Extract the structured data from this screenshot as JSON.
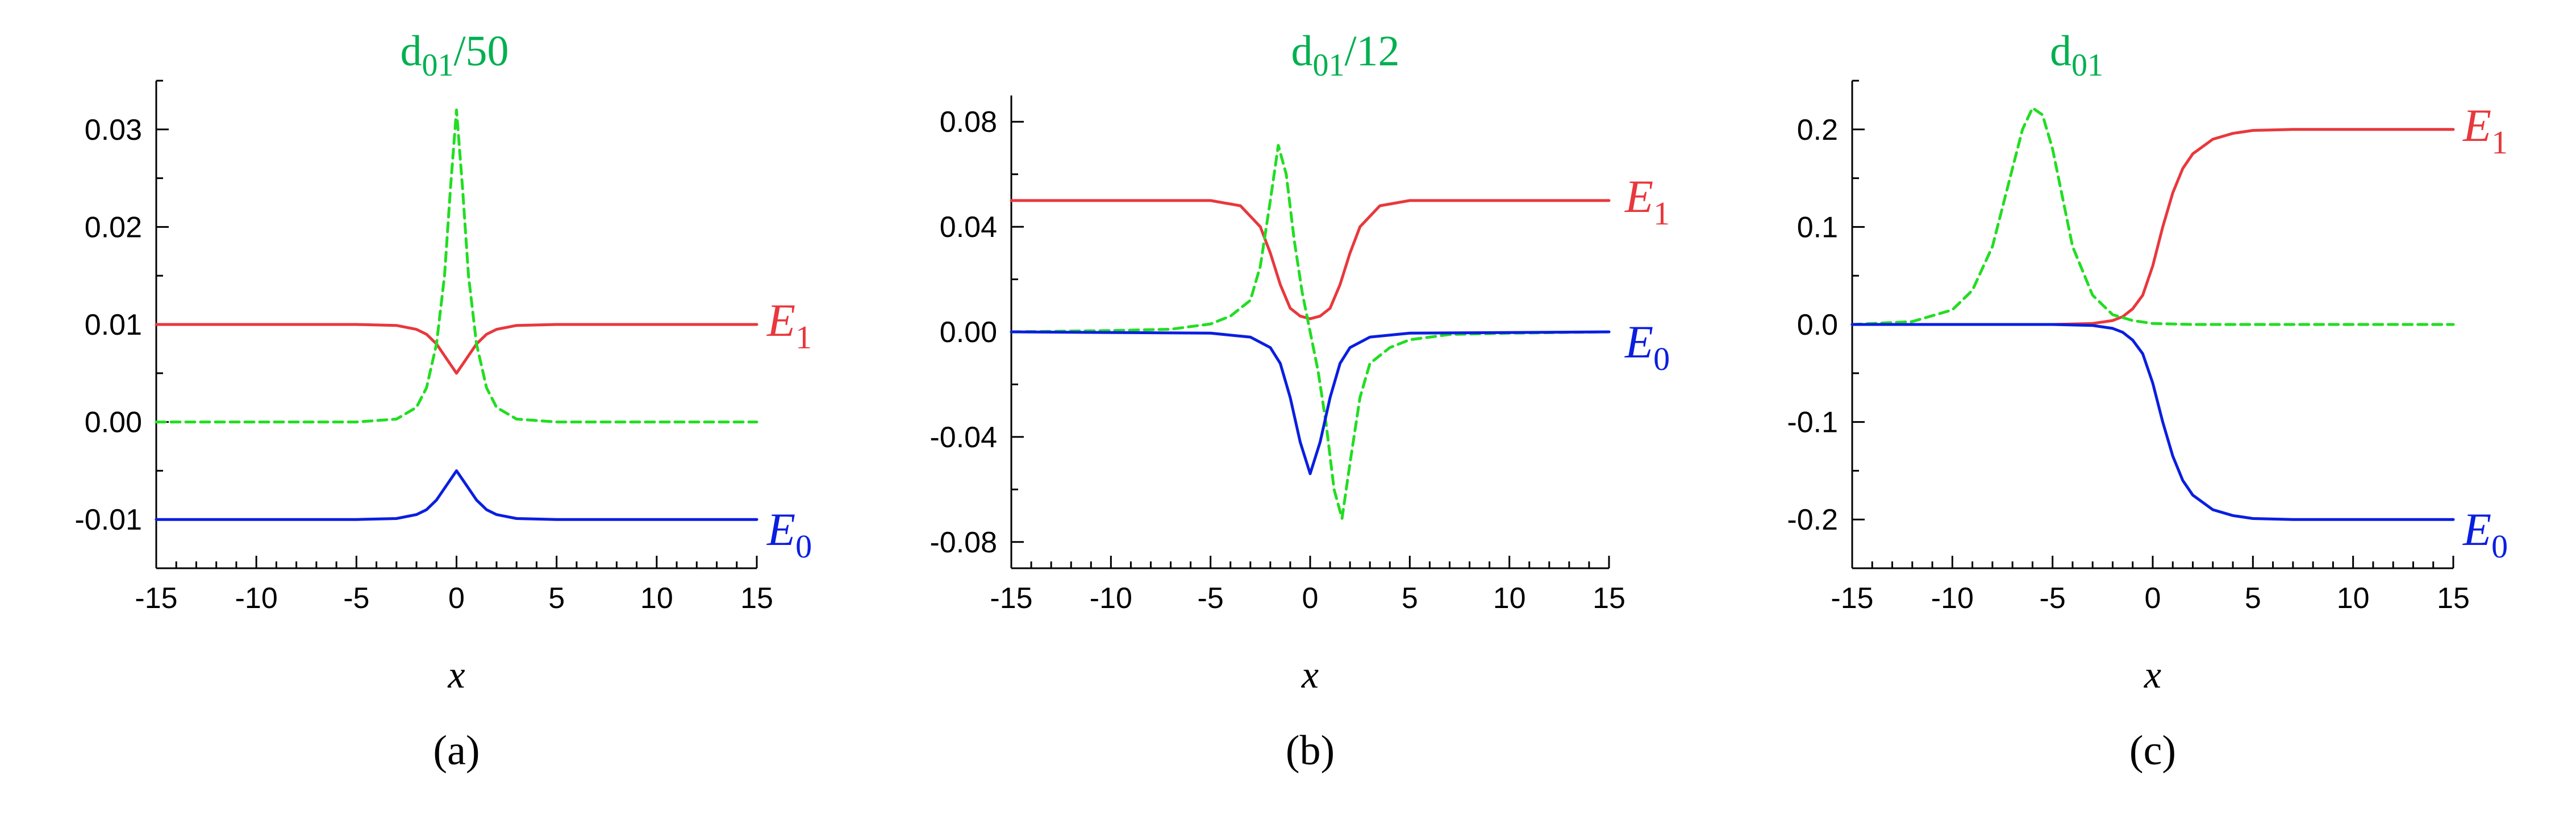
{
  "chart_data": [
    {
      "type": "line",
      "panel": "(a)",
      "title": {
        "base": "d",
        "sub": "01",
        "suffix": "/50",
        "color": "#00b050"
      },
      "xlabel": "x",
      "ylabel": "",
      "xlim": [
        -15,
        15
      ],
      "ylim": [
        -0.015,
        0.035
      ],
      "xticks": [
        -15,
        -10,
        -5,
        0,
        5,
        10,
        15
      ],
      "xtick_labels": [
        "-15",
        "-10",
        "-5",
        "0",
        "5",
        "10",
        "15"
      ],
      "yticks": [
        -0.01,
        0.0,
        0.01,
        0.02,
        0.03
      ],
      "ytick_labels": [
        "-0.01",
        "0.00",
        "0.01",
        "0.02",
        "0.03"
      ],
      "series": [
        {
          "label": "E",
          "sub": "1",
          "color": "#e8383d",
          "dash": false,
          "x": [
            -15,
            -5,
            -3,
            -2,
            -1.5,
            -1,
            -0.5,
            0,
            0.5,
            1,
            1.5,
            2,
            3,
            5,
            15
          ],
          "y": [
            0.01,
            0.01,
            0.0099,
            0.0095,
            0.009,
            0.008,
            0.0065,
            0.005,
            0.0065,
            0.008,
            0.009,
            0.0095,
            0.0099,
            0.01,
            0.01
          ]
        },
        {
          "label": "d01/50",
          "color": "#22dd22",
          "dash": true,
          "x": [
            -15,
            -5,
            -3,
            -2,
            -1.5,
            -1,
            -0.6,
            -0.3,
            0,
            0.3,
            0.6,
            1,
            1.5,
            2,
            3,
            5,
            15
          ],
          "y": [
            0.0,
            0.0,
            0.0003,
            0.0015,
            0.0035,
            0.008,
            0.015,
            0.024,
            0.032,
            0.024,
            0.015,
            0.008,
            0.0035,
            0.0015,
            0.0003,
            0.0,
            0.0
          ]
        },
        {
          "label": "E",
          "sub": "0",
          "color": "#0a1ee0",
          "dash": false,
          "x": [
            -15,
            -5,
            -3,
            -2,
            -1.5,
            -1,
            -0.5,
            0,
            0.5,
            1,
            1.5,
            2,
            3,
            5,
            15
          ],
          "y": [
            -0.01,
            -0.01,
            -0.0099,
            -0.0095,
            -0.009,
            -0.008,
            -0.0065,
            -0.005,
            -0.0065,
            -0.008,
            -0.009,
            -0.0095,
            -0.0099,
            -0.01,
            -0.01
          ]
        }
      ]
    },
    {
      "type": "line",
      "panel": "(b)",
      "title": {
        "base": "d",
        "sub": "01",
        "suffix": "/12",
        "color": "#00b050"
      },
      "xlabel": "x",
      "ylabel": "",
      "xlim": [
        -15,
        15
      ],
      "ylim": [
        -0.09,
        0.09
      ],
      "xticks": [
        -15,
        -10,
        -5,
        0,
        5,
        10,
        15
      ],
      "xtick_labels": [
        "-15",
        "-10",
        "-5",
        "0",
        "5",
        "10",
        "15"
      ],
      "yticks": [
        -0.08,
        -0.04,
        0.0,
        0.04,
        0.08
      ],
      "ytick_labels": [
        "-0.08",
        "-0.04",
        "0.00",
        "0.04",
        "0.08"
      ],
      "series": [
        {
          "label": "E",
          "sub": "1",
          "color": "#e8383d",
          "dash": false,
          "x": [
            -15,
            -5,
            -3.5,
            -2.5,
            -2,
            -1.5,
            -1,
            -0.5,
            0,
            0.5,
            1,
            1.5,
            2,
            2.5,
            3.5,
            5,
            15
          ],
          "y": [
            0.05,
            0.05,
            0.048,
            0.04,
            0.03,
            0.018,
            0.009,
            0.006,
            0.005,
            0.006,
            0.009,
            0.018,
            0.03,
            0.04,
            0.048,
            0.05,
            0.05
          ]
        },
        {
          "label": "d01/12",
          "color": "#22dd22",
          "dash": true,
          "x": [
            -15,
            -10,
            -7,
            -5,
            -4,
            -3,
            -2.5,
            -2,
            -1.6,
            -1.2,
            -0.8,
            -0.4,
            0,
            0.4,
            0.8,
            1.2,
            1.6,
            2,
            2.5,
            3,
            4,
            5,
            7,
            10,
            15
          ],
          "y": [
            0.0,
            0.0005,
            0.001,
            0.003,
            0.006,
            0.012,
            0.025,
            0.05,
            0.071,
            0.06,
            0.035,
            0.015,
            0.0,
            -0.015,
            -0.035,
            -0.06,
            -0.071,
            -0.05,
            -0.025,
            -0.012,
            -0.006,
            -0.003,
            -0.001,
            -0.0005,
            0.0
          ]
        },
        {
          "label": "E",
          "sub": "0",
          "color": "#0a1ee0",
          "dash": false,
          "x": [
            -15,
            -5,
            -3,
            -2,
            -1.5,
            -1,
            -0.5,
            0,
            0.5,
            1,
            1.5,
            2,
            3,
            5,
            15
          ],
          "y": [
            0.0,
            -0.0005,
            -0.002,
            -0.006,
            -0.012,
            -0.025,
            -0.042,
            -0.054,
            -0.042,
            -0.025,
            -0.012,
            -0.006,
            -0.002,
            -0.0005,
            0.0
          ]
        }
      ]
    },
    {
      "type": "line",
      "panel": "(c)",
      "title": {
        "base": "d",
        "sub": "01",
        "suffix": "",
        "color": "#00b050"
      },
      "xlabel": "x",
      "ylabel": "",
      "xlim": [
        -15,
        15
      ],
      "ylim": [
        -0.25,
        0.25
      ],
      "xticks": [
        -15,
        -10,
        -5,
        0,
        5,
        10,
        15
      ],
      "xtick_labels": [
        "-15",
        "-10",
        "-5",
        "0",
        "5",
        "10",
        "15"
      ],
      "yticks": [
        -0.2,
        -0.1,
        0.0,
        0.1,
        0.2
      ],
      "ytick_labels": [
        "-0.2",
        "-0.1",
        "0.0",
        "0.1",
        "0.2"
      ],
      "series": [
        {
          "label": "E",
          "sub": "1",
          "color": "#e8383d",
          "dash": false,
          "x": [
            -15,
            -5,
            -3,
            -2,
            -1.5,
            -1,
            -0.5,
            0,
            0.5,
            1,
            1.5,
            2,
            3,
            4,
            5,
            7,
            15
          ],
          "y": [
            0.0,
            0.0,
            0.001,
            0.004,
            0.008,
            0.016,
            0.03,
            0.06,
            0.1,
            0.135,
            0.16,
            0.175,
            0.19,
            0.196,
            0.199,
            0.2,
            0.2
          ]
        },
        {
          "label": "d01",
          "color": "#22dd22",
          "dash": true,
          "x": [
            -15,
            -12,
            -10,
            -9,
            -8,
            -7,
            -6.5,
            -6,
            -5.5,
            -5,
            -4.5,
            -4,
            -3,
            -2,
            -1,
            0,
            2,
            5,
            15
          ],
          "y": [
            0.0,
            0.003,
            0.015,
            0.035,
            0.08,
            0.16,
            0.2,
            0.222,
            0.215,
            0.18,
            0.13,
            0.08,
            0.03,
            0.01,
            0.004,
            0.001,
            0.0,
            0.0,
            0.0
          ]
        },
        {
          "label": "E",
          "sub": "0",
          "color": "#0a1ee0",
          "dash": false,
          "x": [
            -15,
            -5,
            -3,
            -2,
            -1.5,
            -1,
            -0.5,
            0,
            0.5,
            1,
            1.5,
            2,
            3,
            4,
            5,
            7,
            15
          ],
          "y": [
            0.0,
            0.0,
            -0.001,
            -0.004,
            -0.008,
            -0.016,
            -0.03,
            -0.06,
            -0.1,
            -0.135,
            -0.16,
            -0.175,
            -0.19,
            -0.196,
            -0.199,
            -0.2,
            -0.2
          ]
        }
      ]
    }
  ]
}
